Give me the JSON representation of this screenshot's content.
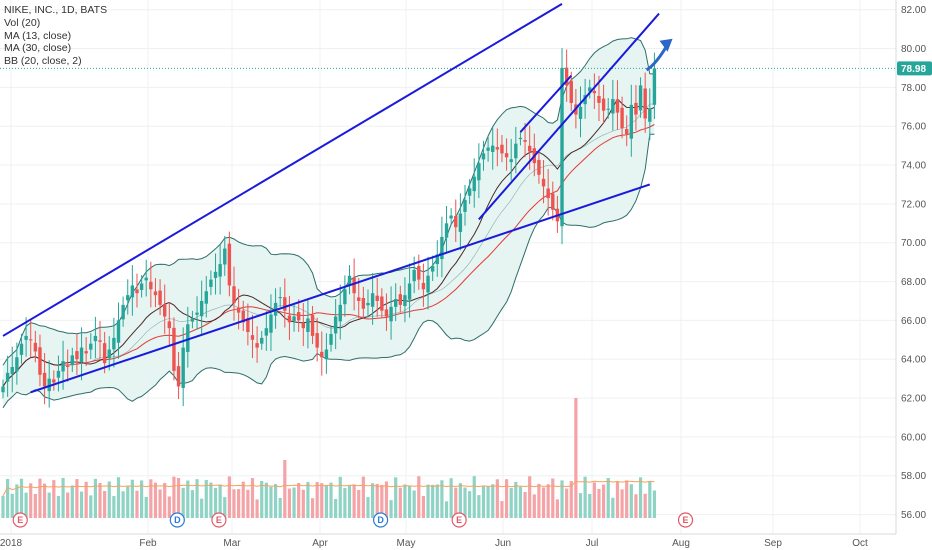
{
  "legend": {
    "symbol": "NIKE, INC., 1D, BATS",
    "vol": "Vol (20)",
    "ma13": "MA (13, close)",
    "ma30": "MA (30, close)",
    "bb": "BB (20, close, 2)"
  },
  "last_price": "78.98",
  "colors": {
    "up": "#26a69a",
    "down": "#ef5350",
    "up_vol": "#8fd3c4",
    "down_vol": "#f4a3a6",
    "ma13": "#4a2a2a",
    "ma30": "#e23a3a",
    "bb": "#2e6e6a",
    "bb_fill": "#e6f4f2",
    "trend": "#1a1adc",
    "arrow": "#2a67c8",
    "vol_ma": "#f5a25d",
    "price_tag": "#26a69a"
  },
  "chart_data": {
    "type": "candlestick",
    "y_axis": {
      "min": 55,
      "max": 82.5,
      "ticks": [
        "82.00",
        "80.00",
        "78.00",
        "76.00",
        "74.00",
        "72.00",
        "70.00",
        "68.00",
        "66.00",
        "64.00",
        "62.00",
        "60.00",
        "58.00",
        "56.00"
      ]
    },
    "x_axis": {
      "labels": [
        "2018",
        "Feb",
        "Mar",
        "Apr",
        "May",
        "Jun",
        "Jul",
        "Aug",
        "Sep",
        "Oct"
      ]
    },
    "start_close": 62.6,
    "closes": [
      62.6,
      63.3,
      63.6,
      64.1,
      64.8,
      65.2,
      65.0,
      64.4,
      63.2,
      62.6,
      63.0,
      62.8,
      63.4,
      63.9,
      63.6,
      64.2,
      64.0,
      64.6,
      64.3,
      64.8,
      65.2,
      64.9,
      63.8,
      64.5,
      65.1,
      66.0,
      66.8,
      67.3,
      67.8,
      67.4,
      67.9,
      68.2,
      67.6,
      67.3,
      66.8,
      66.2,
      65.6,
      63.4,
      62.6,
      64.6,
      65.8,
      66.1,
      66.4,
      67.0,
      67.5,
      68.1,
      68.5,
      68.9,
      69.7,
      67.8,
      66.9,
      66.4,
      65.9,
      65.4,
      65.0,
      64.6,
      65.1,
      65.6,
      66.3,
      66.9,
      67.2,
      66.5,
      65.9,
      66.2,
      66.0,
      65.6,
      66.1,
      65.2,
      64.6,
      64.1,
      64.5,
      65.3,
      66.2,
      66.8,
      67.6,
      68.3,
      67.4,
      67.0,
      66.6,
      66.9,
      67.4,
      67.0,
      66.5,
      66.2,
      66.7,
      67.1,
      66.8,
      67.3,
      67.9,
      68.6,
      68.1,
      67.6,
      68.3,
      68.8,
      69.4,
      70.3,
      71.0,
      71.4,
      70.8,
      71.5,
      72.2,
      72.8,
      73.4,
      74.1,
      74.6,
      74.9,
      75.0,
      74.8,
      74.6,
      74.4,
      74.3,
      75.1,
      75.4,
      75.2,
      74.7,
      74.1,
      73.5,
      72.9,
      72.3,
      71.7,
      71.1,
      79.0,
      78.1,
      77.2,
      76.6,
      77.0,
      77.6,
      78.0,
      77.7,
      77.2,
      76.8,
      76.9,
      77.4,
      76.7,
      75.9,
      75.6,
      77.1,
      76.6,
      78.1,
      76.4,
      76.9,
      78.98
    ],
    "ma13_note": "MA (13, close)",
    "ma30_note": "MA (30, close)",
    "bb_note": "BB (20, close, 2)",
    "trendlines": [
      {
        "x": [
          0,
          121
        ],
        "y": [
          65.2,
          82.3
        ]
      },
      {
        "x": [
          6,
          140
        ],
        "y": [
          62.3,
          73.0
        ]
      },
      {
        "x": [
          103,
          142
        ],
        "y": [
          71.2,
          81.8
        ]
      },
      {
        "x": [
          112,
          123
        ],
        "y": [
          75.7,
          78.6
        ]
      }
    ],
    "earnings_markers": [
      {
        "label": "E",
        "x": 2
      },
      {
        "label": "D",
        "x": 36
      },
      {
        "label": "E",
        "x": 45
      },
      {
        "label": "D",
        "x": 80
      },
      {
        "label": "E",
        "x": 97
      },
      {
        "label": "E",
        "x": 146
      }
    ]
  }
}
